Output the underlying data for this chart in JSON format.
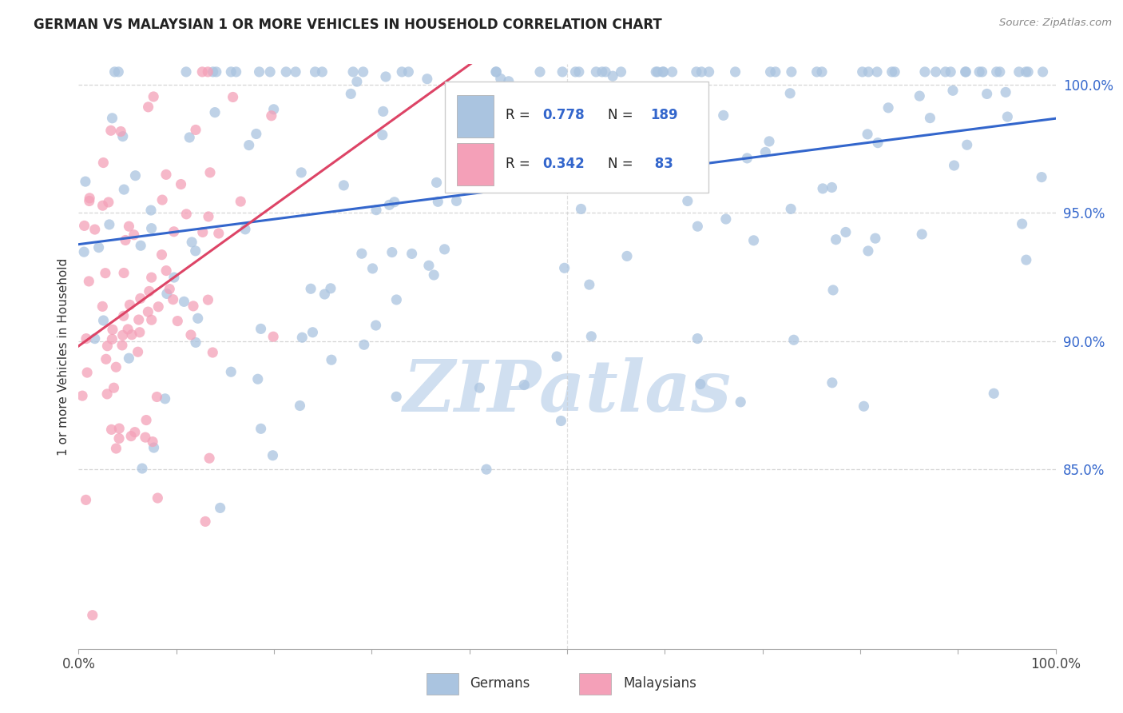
{
  "title": "GERMAN VS MALAYSIAN 1 OR MORE VEHICLES IN HOUSEHOLD CORRELATION CHART",
  "source": "Source: ZipAtlas.com",
  "ylabel": "1 or more Vehicles in Household",
  "german_R": 0.778,
  "german_N": 189,
  "malaysian_R": 0.342,
  "malaysian_N": 83,
  "german_color": "#aac4e0",
  "german_line_color": "#3366cc",
  "malaysian_color": "#f4a0b8",
  "malaysian_line_color": "#dd4466",
  "background_color": "#ffffff",
  "grid_color": "#cccccc",
  "title_color": "#222222",
  "right_tick_color": "#3366cc",
  "watermark_color": "#d0dff0",
  "seed": 42,
  "ylim_low": 0.78,
  "ylim_high": 1.008,
  "ytick_vals": [
    0.85,
    0.9,
    0.95,
    1.0
  ],
  "ytick_labels": [
    "85.0%",
    "90.0%",
    "95.0%",
    "100.0%"
  ]
}
